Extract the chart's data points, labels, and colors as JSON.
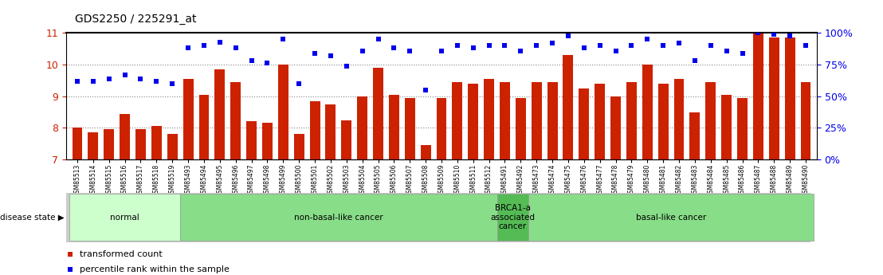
{
  "title": "GDS2250 / 225291_at",
  "samples": [
    "GSM85513",
    "GSM85514",
    "GSM85515",
    "GSM85516",
    "GSM85517",
    "GSM85518",
    "GSM85519",
    "GSM85493",
    "GSM85494",
    "GSM85495",
    "GSM85496",
    "GSM85497",
    "GSM85498",
    "GSM85499",
    "GSM85500",
    "GSM85501",
    "GSM85502",
    "GSM85503",
    "GSM85504",
    "GSM85505",
    "GSM85506",
    "GSM85507",
    "GSM85508",
    "GSM85509",
    "GSM85510",
    "GSM85511",
    "GSM85512",
    "GSM85491",
    "GSM85492",
    "GSM85473",
    "GSM85474",
    "GSM85475",
    "GSM85476",
    "GSM85477",
    "GSM85478",
    "GSM85479",
    "GSM85480",
    "GSM85481",
    "GSM85482",
    "GSM85483",
    "GSM85484",
    "GSM85485",
    "GSM85486",
    "GSM85487",
    "GSM85488",
    "GSM85489",
    "GSM85490"
  ],
  "bar_values": [
    8.0,
    7.85,
    7.95,
    8.45,
    7.95,
    8.05,
    7.8,
    9.55,
    9.05,
    9.85,
    9.45,
    8.2,
    8.15,
    10.0,
    7.8,
    8.85,
    8.75,
    8.25,
    9.0,
    9.9,
    9.05,
    8.95,
    7.45,
    8.95,
    9.45,
    9.4,
    9.55,
    9.45,
    8.95,
    9.45,
    9.45,
    10.3,
    9.25,
    9.4,
    9.0,
    9.45,
    10.0,
    9.4,
    9.55,
    8.5,
    9.45,
    9.05,
    8.95,
    11.0,
    10.85,
    10.85,
    9.45
  ],
  "percentile_values": [
    62,
    62,
    64,
    67,
    64,
    62,
    60,
    88,
    90,
    93,
    88,
    78,
    76,
    95,
    60,
    84,
    82,
    74,
    86,
    95,
    88,
    86,
    55,
    86,
    90,
    88,
    90,
    90,
    86,
    90,
    92,
    98,
    88,
    90,
    86,
    90,
    95,
    90,
    92,
    78,
    90,
    86,
    84,
    100,
    99,
    98,
    90
  ],
  "ylim_left": [
    7,
    11
  ],
  "ylim_right": [
    0,
    100
  ],
  "yticks_left": [
    7,
    8,
    9,
    10,
    11
  ],
  "yticks_right": [
    0,
    25,
    50,
    75,
    100
  ],
  "bar_color": "#cc2200",
  "marker_color": "#0000ee",
  "bg_color": "#ffffff",
  "disease_groups": [
    {
      "label": "normal",
      "start": 0,
      "end": 7,
      "color": "#ccffcc"
    },
    {
      "label": "non-basal-like cancer",
      "start": 7,
      "end": 27,
      "color": "#88dd88"
    },
    {
      "label": "BRCA1-a\nassociated\ncancer",
      "start": 27,
      "end": 29,
      "color": "#55bb55"
    },
    {
      "label": "basal-like cancer",
      "start": 29,
      "end": 47,
      "color": "#88dd88"
    }
  ],
  "disease_state_label": "disease state",
  "legend_bar_label": "transformed count",
  "legend_pct_label": "percentile rank within the sample"
}
